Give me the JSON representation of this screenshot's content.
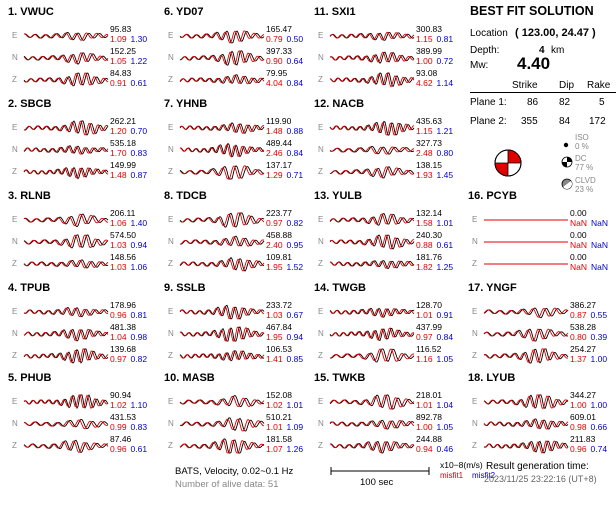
{
  "summary": {
    "title": "BEST FIT SOLUTION",
    "location_label": "Location",
    "location_value": "( 123.00, 24.47 )",
    "depth_label": "Depth:",
    "depth_value": "4",
    "depth_unit": "km",
    "mw_label": "Mw:",
    "mw_value": "4.40",
    "table_headers": [
      "Strike",
      "Dip",
      "Rake"
    ],
    "planes": [
      {
        "label": "Plane 1:",
        "strike": "86",
        "dip": "82",
        "rake": "5"
      },
      {
        "label": "Plane 2:",
        "strike": "355",
        "dip": "84",
        "rake": "172"
      }
    ],
    "decomposition": [
      {
        "label": "ISO",
        "value": "0 %"
      },
      {
        "label": "DC",
        "value": "77 %"
      },
      {
        "label": "CLVD",
        "value": "23 %"
      }
    ]
  },
  "footer": {
    "method": "BATS, Velocity, 0.02~0.1 Hz",
    "alive": "Number of alive data: 51",
    "scale_label": "100 sec",
    "unit": "x10−8(m/s)",
    "misfit1": "misfit1",
    "misfit2": "misfit2",
    "result_label": "Result generation time:",
    "result_time": "2023/11/25 23:22:16 (UT+8)"
  },
  "colors": {
    "observed": "#000000",
    "synthetic": "#e00000",
    "misfit1": "#e00000",
    "misfit2": "#0000cc"
  },
  "chart_data": {
    "type": "line",
    "components": [
      "E",
      "N",
      "Z"
    ],
    "stations": [
      {
        "name": "1. VWUC",
        "traces": [
          {
            "amp": "95.83",
            "m1": "1.09",
            "m2": "1.30"
          },
          {
            "amp": "152.25",
            "m1": "1.05",
            "m2": "1.22"
          },
          {
            "amp": "84.83",
            "m1": "0.91",
            "m2": "0.61"
          }
        ]
      },
      {
        "name": "2. SBCB",
        "traces": [
          {
            "amp": "262.21",
            "m1": "1.20",
            "m2": "0.70"
          },
          {
            "amp": "535.18",
            "m1": "1.70",
            "m2": "0.83"
          },
          {
            "amp": "149.99",
            "m1": "1.48",
            "m2": "0.87"
          }
        ]
      },
      {
        "name": "3. RLNB",
        "traces": [
          {
            "amp": "206.11",
            "m1": "1.06",
            "m2": "1.40"
          },
          {
            "amp": "574.50",
            "m1": "1.03",
            "m2": "0.94"
          },
          {
            "amp": "148.56",
            "m1": "1.03",
            "m2": "1.06"
          }
        ]
      },
      {
        "name": "4. TPUB",
        "traces": [
          {
            "amp": "178.96",
            "m1": "0.96",
            "m2": "0.81"
          },
          {
            "amp": "481.38",
            "m1": "1.04",
            "m2": "0.98"
          },
          {
            "amp": "139.68",
            "m1": "0.97",
            "m2": "0.82"
          }
        ]
      },
      {
        "name": "5. PHUB",
        "traces": [
          {
            "amp": "90.94",
            "m1": "1.02",
            "m2": "1.10"
          },
          {
            "amp": "431.53",
            "m1": "0.99",
            "m2": "0.83"
          },
          {
            "amp": "87.46",
            "m1": "0.96",
            "m2": "0.61"
          }
        ]
      },
      {
        "name": "6. YD07",
        "traces": [
          {
            "amp": "165.47",
            "m1": "0.79",
            "m2": "0.50"
          },
          {
            "amp": "397.33",
            "m1": "0.90",
            "m2": "0.64"
          },
          {
            "amp": "79.95",
            "m1": "4.04",
            "m2": "0.84"
          }
        ]
      },
      {
        "name": "7. YHNB",
        "traces": [
          {
            "amp": "119.90",
            "m1": "1.48",
            "m2": "0.88"
          },
          {
            "amp": "489.44",
            "m1": "2.46",
            "m2": "0.84"
          },
          {
            "amp": "137.17",
            "m1": "1.29",
            "m2": "0.71"
          }
        ]
      },
      {
        "name": "8. TDCB",
        "traces": [
          {
            "amp": "223.77",
            "m1": "0.97",
            "m2": "0.82"
          },
          {
            "amp": "458.88",
            "m1": "2.40",
            "m2": "0.95"
          },
          {
            "amp": "109.81",
            "m1": "1.95",
            "m2": "1.52"
          }
        ]
      },
      {
        "name": "9. SSLB",
        "traces": [
          {
            "amp": "233.72",
            "m1": "1.03",
            "m2": "0.67"
          },
          {
            "amp": "467.84",
            "m1": "1.95",
            "m2": "0.94"
          },
          {
            "amp": "106.53",
            "m1": "1.41",
            "m2": "0.85"
          }
        ]
      },
      {
        "name": "10. MASB",
        "traces": [
          {
            "amp": "152.08",
            "m1": "1.02",
            "m2": "1.01"
          },
          {
            "amp": "510.21",
            "m1": "1.01",
            "m2": "1.09"
          },
          {
            "amp": "181.58",
            "m1": "1.07",
            "m2": "1.26"
          }
        ]
      },
      {
        "name": "11. SXI1",
        "traces": [
          {
            "amp": "300.83",
            "m1": "1.15",
            "m2": "0.81"
          },
          {
            "amp": "389.99",
            "m1": "1.00",
            "m2": "0.72"
          },
          {
            "amp": "93.08",
            "m1": "4.62",
            "m2": "1.14"
          }
        ]
      },
      {
        "name": "12. NACB",
        "traces": [
          {
            "amp": "435.63",
            "m1": "1.15",
            "m2": "1.21"
          },
          {
            "amp": "327.73",
            "m1": "2.48",
            "m2": "0.80"
          },
          {
            "amp": "138.15",
            "m1": "1.93",
            "m2": "1.45"
          }
        ]
      },
      {
        "name": "13. YULB",
        "traces": [
          {
            "amp": "132.14",
            "m1": "1.58",
            "m2": "1.01"
          },
          {
            "amp": "240.30",
            "m1": "0.88",
            "m2": "0.61"
          },
          {
            "amp": "181.76",
            "m1": "1.82",
            "m2": "1.25"
          }
        ]
      },
      {
        "name": "14. TWGB",
        "traces": [
          {
            "amp": "128.70",
            "m1": "1.01",
            "m2": "0.91"
          },
          {
            "amp": "437.99",
            "m1": "0.97",
            "m2": "0.84"
          },
          {
            "amp": "116.52",
            "m1": "1.16",
            "m2": "1.05"
          }
        ]
      },
      {
        "name": "15. TWKB",
        "traces": [
          {
            "amp": "218.01",
            "m1": "1.01",
            "m2": "1.04"
          },
          {
            "amp": "892.78",
            "m1": "1.00",
            "m2": "1.05"
          },
          {
            "amp": "244.88",
            "m1": "0.94",
            "m2": "0.46"
          }
        ]
      },
      {
        "name": "16. PCYB",
        "traces": [
          {
            "amp": "0.00",
            "m1": "NaN",
            "m2": "NaN"
          },
          {
            "amp": "0.00",
            "m1": "NaN",
            "m2": "NaN"
          },
          {
            "amp": "0.00",
            "m1": "NaN",
            "m2": "NaN"
          }
        ]
      },
      {
        "name": "17. YNGF",
        "traces": [
          {
            "amp": "386.27",
            "m1": "0.87",
            "m2": "0.55"
          },
          {
            "amp": "538.28",
            "m1": "0.80",
            "m2": "0.39"
          },
          {
            "amp": "254.27",
            "m1": "1.37",
            "m2": "1.00"
          }
        ]
      },
      {
        "name": "18. LYUB",
        "traces": [
          {
            "amp": "344.27",
            "m1": "1.00",
            "m2": "1.00"
          },
          {
            "amp": "609.01",
            "m1": "0.98",
            "m2": "0.66"
          },
          {
            "amp": "211.83",
            "m1": "0.96",
            "m2": "0.74"
          }
        ]
      }
    ]
  }
}
